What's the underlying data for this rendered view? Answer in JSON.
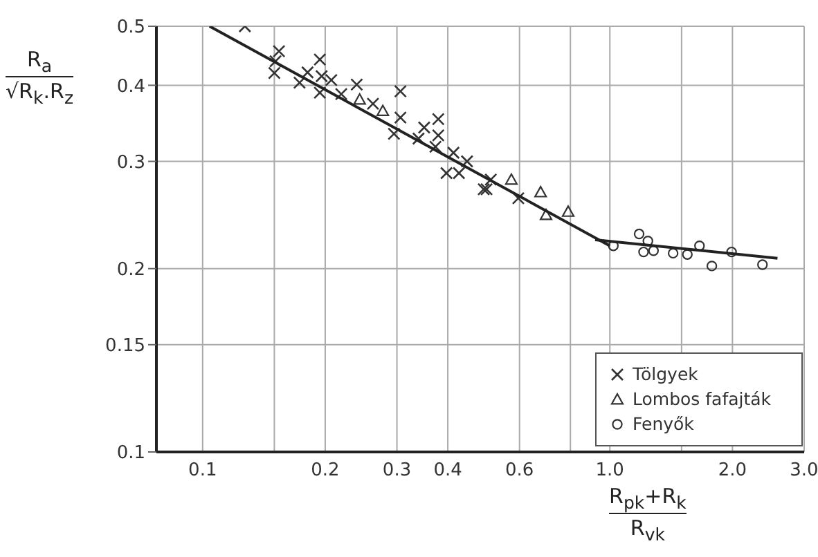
{
  "chart_data": {
    "type": "scatter",
    "xlabel": "R$_{pk}$+R$_{k}$\nR$_{vk}$",
    "ylabel": "R$_{a}$\n√R$_{k}$.R$_{z}$",
    "log": "xy",
    "grid": true,
    "legend": "bottom right",
    "xlim": [
      0.077,
      3.0
    ],
    "ylim": [
      0.1,
      0.5
    ],
    "xticks": [
      0.1,
      {
        "value": 0.15,
        "label": null
      },
      0.2,
      0.3,
      0.4,
      0.6,
      {
        "value": 0.8,
        "label": null
      },
      {
        "value": 1,
        "label": "1.0"
      },
      {
        "value": 1.5,
        "label": null
      },
      {
        "value": 2,
        "label": "2.0"
      },
      {
        "value": 3,
        "label": "3.0"
      }
    ],
    "yticks": [
      0.1,
      0.15,
      0.2,
      0.3,
      0.4,
      0.5
    ],
    "series": [
      {
        "name": "Tölgyek",
        "color": "#333333",
        "marker": "cross",
        "x": [
          0.127,
          0.154,
          0.151,
          0.15,
          0.173,
          0.181,
          0.194,
          0.196,
          0.194,
          0.207,
          0.219,
          0.239,
          0.262,
          0.306,
          0.306,
          0.295,
          0.339,
          0.35,
          0.379,
          0.379,
          0.373,
          0.413,
          0.397,
          0.426,
          0.49,
          0.446,
          0.498,
          0.51,
          0.596
        ],
        "values": [
          0.5,
          0.455,
          0.438,
          0.419,
          0.404,
          0.42,
          0.441,
          0.414,
          0.389,
          0.408,
          0.387,
          0.401,
          0.373,
          0.391,
          0.354,
          0.333,
          0.327,
          0.341,
          0.352,
          0.331,
          0.317,
          0.31,
          0.287,
          0.287,
          0.27,
          0.3,
          0.27,
          0.28,
          0.261
        ]
      },
      {
        "name": "Lombos fafajták",
        "color": "#333333",
        "marker": "triangle",
        "x": [
          0.243,
          0.277,
          0.573,
          0.676,
          0.697,
          0.79
        ],
        "values": [
          0.379,
          0.363,
          0.28,
          0.267,
          0.245,
          0.248
        ]
      },
      {
        "name": "Fenyők",
        "color": "#333333",
        "marker": "circle",
        "x": [
          1.02,
          1.18,
          1.24,
          1.21,
          1.28,
          1.43,
          1.55,
          1.66,
          1.78,
          1.99,
          2.37
        ],
        "values": [
          0.218,
          0.228,
          0.222,
          0.213,
          0.214,
          0.212,
          0.211,
          0.218,
          0.202,
          0.213,
          0.203
        ]
      },
      {
        "type": "line",
        "color": "#222222",
        "marker": "none",
        "x": [
          0.104,
          1.0
        ],
        "values": [
          0.5,
          0.218
        ]
      },
      {
        "type": "line",
        "color": "#222222",
        "marker": "none",
        "x": [
          0.92,
          2.58
        ],
        "values": [
          0.223,
          0.208
        ]
      }
    ]
  }
}
